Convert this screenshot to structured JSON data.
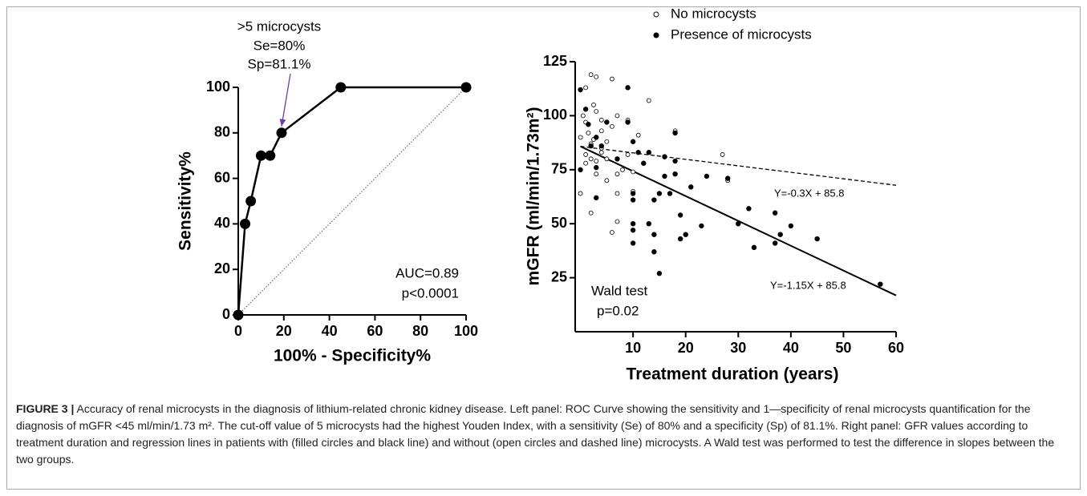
{
  "chart_data": [
    {
      "type": "line",
      "x": [
        0,
        3,
        5.5,
        10,
        14,
        19,
        45,
        100
      ],
      "values": [
        0,
        40,
        50,
        70,
        70,
        80,
        100,
        100
      ],
      "color": "#000000",
      "xlim": [
        0,
        100
      ],
      "ylim": [
        0,
        100
      ],
      "xticks": [
        0,
        20,
        40,
        60,
        80,
        100
      ],
      "yticks": [
        0,
        20,
        40,
        60,
        80,
        100
      ],
      "xlabel": "100% - Specificity%",
      "ylabel": "Sensitivity%",
      "annotations": [
        ">5 microcysts",
        "Se=80%",
        "Sp=81.1%",
        "AUC=0.89",
        "p<0.0001"
      ],
      "arrow_color": "#6a3fa0",
      "diagonal": true
    },
    {
      "type": "scatter",
      "series": [
        {
          "name": "No microcysts",
          "color": "#000000",
          "filled": false,
          "x": [
            0,
            0,
            0.5,
            1,
            1,
            1,
            1,
            1.5,
            2,
            2,
            2,
            2.5,
            2.5,
            3,
            3,
            3,
            3,
            4,
            4,
            4,
            5,
            5,
            6,
            6,
            6,
            7,
            7,
            7,
            7,
            8,
            9,
            9,
            10,
            10,
            11,
            13,
            18,
            27,
            28,
            2,
            4,
            5
          ],
          "values": [
            64,
            90,
            100,
            97,
            82,
            113,
            78,
            92,
            87,
            80,
            119,
            105,
            89,
            102,
            79,
            73,
            118,
            98,
            85,
            93,
            88,
            80,
            46,
            117,
            95,
            73,
            100,
            64,
            51,
            75,
            98,
            82,
            65,
            74,
            91,
            107,
            93,
            82,
            70,
            55,
            83,
            70
          ]
        },
        {
          "name": "Presence of microcysts",
          "color": "#000000",
          "filled": true,
          "x": [
            0,
            0,
            1,
            1.5,
            2,
            3,
            3,
            3,
            4,
            5,
            7,
            9,
            9,
            10,
            10,
            10,
            10,
            10,
            10,
            11,
            12,
            13,
            13,
            14,
            14,
            14,
            15,
            15,
            16,
            16,
            17,
            18,
            18,
            18,
            19,
            19,
            20,
            21,
            23,
            24,
            28,
            30,
            32,
            33,
            37,
            37,
            38,
            40,
            45,
            57
          ],
          "values": [
            75,
            112,
            103,
            96,
            86,
            62,
            76,
            90,
            86,
            97,
            80,
            113,
            97,
            88,
            64,
            61,
            50,
            47,
            41,
            83,
            78,
            50,
            83,
            45,
            37,
            61,
            27,
            64,
            81,
            72,
            64,
            92,
            73,
            79,
            54,
            43,
            45,
            67,
            49,
            72,
            71,
            50,
            57,
            39,
            55,
            41,
            45,
            49,
            43,
            22
          ]
        }
      ],
      "lines": [
        {
          "label": "Y=-0.3X + 85.8",
          "slope": -0.3,
          "intercept": 85.8,
          "dashed": true
        },
        {
          "label": "Y=-1.15X + 85.8",
          "slope": -1.15,
          "intercept": 85.8,
          "dashed": false
        }
      ],
      "xlim": [
        -1,
        60
      ],
      "ylim": [
        0,
        125
      ],
      "xticks": [
        10,
        20,
        30,
        40,
        50,
        60
      ],
      "yticks": [
        25,
        50,
        75,
        100,
        125
      ],
      "xlabel": "Treatment duration (years)",
      "ylabel": "mGFR (ml/min/1.73m²)",
      "annotations": [
        "Wald test",
        "p=0.02"
      ]
    }
  ],
  "caption": {
    "label": "FIGURE 3 |",
    "text": "Accuracy of renal microcysts in the diagnosis of lithium-related chronic kidney disease. Left panel: ROC Curve showing the sensitivity and 1—specificity of renal microcysts quantification for the diagnosis of mGFR <45 ml/min/1.73 m². The cut-off value of 5 microcysts had the highest Youden Index, with a sensitivity (Se) of 80% and a specificity (Sp) of 81.1%. Right panel: GFR values according to treatment duration and regression lines in patients with (filled circles and black line) and without (open circles and dashed line) microcysts. A Wald test was performed to test the difference in slopes between the two groups."
  }
}
